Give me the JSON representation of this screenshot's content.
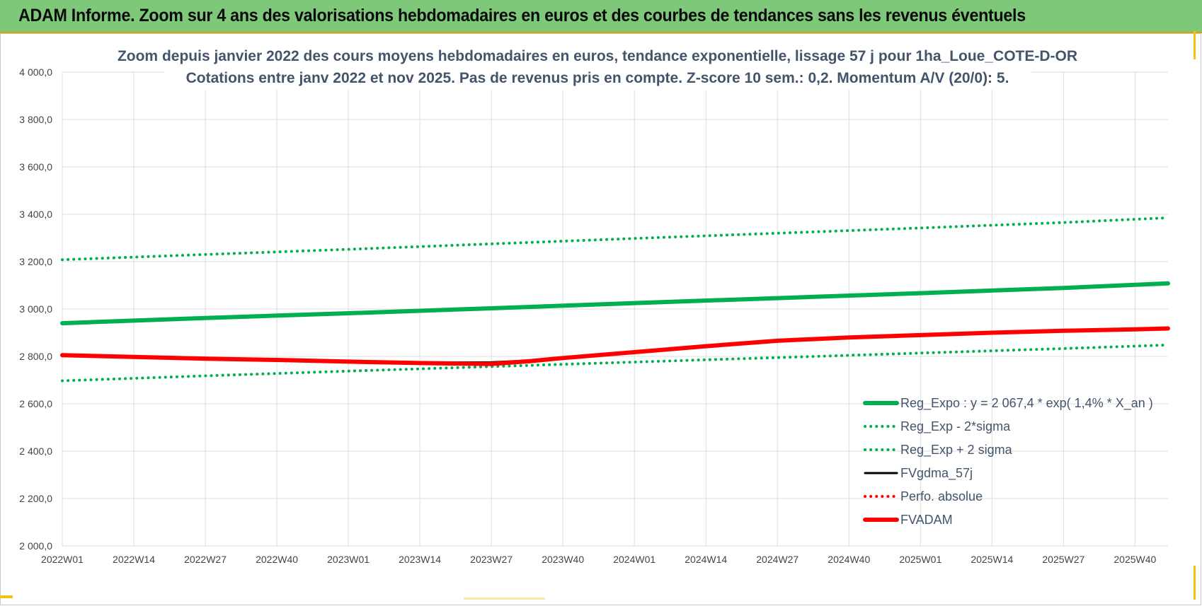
{
  "banner": {
    "title": "ADAM Informe. Zoom sur 4 ans des valorisations hebdomadaires en euros et des courbes de tendances sans les revenus éventuels",
    "color": "#7ec87a"
  },
  "chart_data": {
    "type": "line",
    "title": "Zoom depuis janvier 2022 des cours moyens hebdomadaires en euros, tendance exponentielle, lissage 57 j pour 1ha_Loue_COTE-D-OR",
    "subtitle": "Cotations entre janv 2022 et nov 2025. Pas de revenus pris en compte. Z-score 10 sem.: 0,2. Momentum A/V (20/0): 5.",
    "xlabel": "",
    "ylabel": "",
    "ylim": [
      2000,
      4000
    ],
    "yticks": [
      "4 000,0",
      "3 800,0",
      "3 600,0",
      "3 400,0",
      "3 200,0",
      "3 000,0",
      "2 800,0",
      "2 600,0",
      "2 400,0",
      "2 200,0",
      "2 000,0"
    ],
    "xticks": [
      "2022W01",
      "2022W14",
      "2022W27",
      "2022W40",
      "2023W01",
      "2023W14",
      "2023W27",
      "2023W40",
      "2024W01",
      "2024W14",
      "2024W27",
      "2024W40",
      "2025W01",
      "2025W14",
      "2025W27",
      "2025W40"
    ],
    "x_range": [
      "2022W01",
      "2025W46"
    ],
    "grid": true,
    "legend_position": "bottom-right",
    "series": [
      {
        "name": "Reg_Expo : y = 2 067,4 * exp( 1,4% *  X_an )",
        "style": "solid-thick",
        "color": "#00b050",
        "x": [
          "2022W01",
          "2022W27",
          "2023W01",
          "2023W27",
          "2024W01",
          "2024W27",
          "2025W01",
          "2025W27",
          "2025W46"
        ],
        "values": [
          2940,
          2962,
          2982,
          3003,
          3025,
          3046,
          3067,
          3089,
          3108
        ]
      },
      {
        "name": "Reg_Exp - 2*sigma",
        "style": "dotted",
        "color": "#00b050",
        "x": [
          "2022W01",
          "2022W27",
          "2023W01",
          "2023W27",
          "2024W01",
          "2024W27",
          "2025W01",
          "2025W27",
          "2025W46"
        ],
        "values": [
          2697,
          2718,
          2738,
          2757,
          2776,
          2795,
          2814,
          2833,
          2848
        ]
      },
      {
        "name": "Reg_Exp + 2 sigma",
        "style": "dotted",
        "color": "#00b050",
        "x": [
          "2022W01",
          "2022W27",
          "2023W01",
          "2023W27",
          "2024W01",
          "2024W27",
          "2025W01",
          "2025W27",
          "2025W46"
        ],
        "values": [
          3208,
          3230,
          3252,
          3275,
          3298,
          3320,
          3342,
          3365,
          3385
        ]
      },
      {
        "name": "FVgdma_57j",
        "style": "solid",
        "color": "#000000",
        "x": [
          "2022W01",
          "2022W14",
          "2022W27",
          "2022W40",
          "2023W01",
          "2023W14",
          "2023W27",
          "2023W34",
          "2023W40",
          "2024W01",
          "2024W14",
          "2024W27",
          "2024W40",
          "2025W01",
          "2025W14",
          "2025W27",
          "2025W40",
          "2025W46"
        ],
        "values": [
          2805,
          2798,
          2790,
          2785,
          2778,
          2774,
          2775,
          2783,
          2793,
          2818,
          2843,
          2866,
          2880,
          2890,
          2900,
          2908,
          2914,
          2918
        ]
      },
      {
        "name": "Perfo. absolue",
        "style": "dotted",
        "color": "#ff0000",
        "x": [],
        "values": []
      },
      {
        "name": "FVADAM",
        "style": "solid-thick",
        "color": "#ff0000",
        "x": [
          "2022W01",
          "2022W14",
          "2022W27",
          "2022W40",
          "2023W01",
          "2023W14",
          "2023W27",
          "2023W34",
          "2023W40",
          "2024W01",
          "2024W14",
          "2024W27",
          "2024W40",
          "2025W01",
          "2025W14",
          "2025W27",
          "2025W40",
          "2025W46"
        ],
        "values": [
          2805,
          2798,
          2790,
          2785,
          2778,
          2772,
          2768,
          2780,
          2793,
          2818,
          2843,
          2866,
          2880,
          2890,
          2900,
          2908,
          2914,
          2918
        ]
      }
    ]
  }
}
